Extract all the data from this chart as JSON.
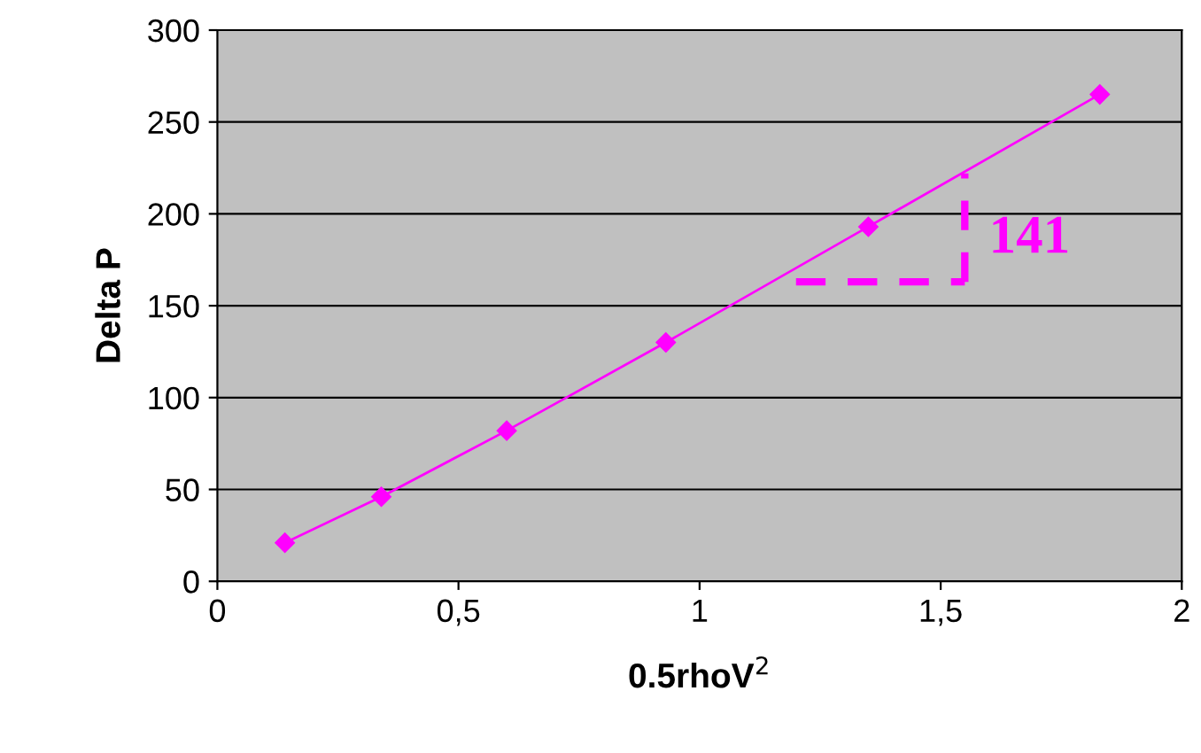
{
  "chart_data": {
    "type": "line",
    "xlabel": "0.5rhoV$^{2}$",
    "ylabel": "Delta P",
    "x": [
      0.14,
      0.34,
      0.6,
      0.93,
      1.35,
      1.83
    ],
    "series": [
      {
        "color": "#ff00ff",
        "values": [
          21,
          46,
          82,
          130,
          193,
          265
        ]
      }
    ],
    "xlim": [
      0,
      2
    ],
    "xticks": [
      0,
      {
        "value": 0.5,
        "label": "0,5"
      },
      1,
      {
        "value": 1.5,
        "label": "1,5"
      },
      2
    ],
    "ylim": [
      0,
      300
    ],
    "yticks": [
      0,
      50,
      100,
      150,
      200,
      250,
      300
    ],
    "grid": "y",
    "marker": "diamond",
    "line_style": "solid",
    "legend": false,
    "annotations": [
      "141"
    ]
  }
}
